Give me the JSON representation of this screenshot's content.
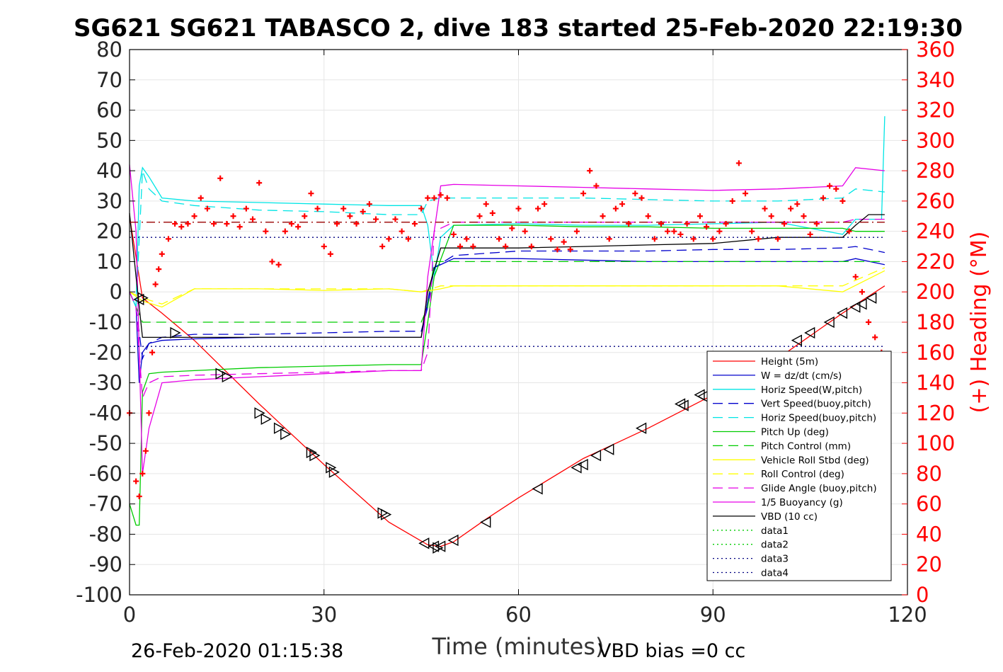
{
  "chart_data": {
    "type": "line",
    "title": "SG621 SG621 TABASCO 2, dive 183 started 25-Feb-2020 22:19:30",
    "xlabel": "Time (minutes)",
    "ylabel_right": "(+) Heading (°M)",
    "footer_left": "26-Feb-2020 01:15:38",
    "footer_right": "VBD bias =0 cc",
    "xlim": [
      0,
      120
    ],
    "ylim": [
      -100,
      80
    ],
    "ylim_right": [
      0,
      360
    ],
    "x_ticks": [
      "0",
      "30",
      "60",
      "90",
      "120"
    ],
    "y_ticks": [
      "80",
      "70",
      "60",
      "50",
      "40",
      "30",
      "20",
      "10",
      "0",
      "-10",
      "-20",
      "-30",
      "-40",
      "-50",
      "-60",
      "-70",
      "-80",
      "-90",
      "-100"
    ],
    "y_right_ticks": [
      "360",
      "340",
      "320",
      "300",
      "280",
      "260",
      "240",
      "220",
      "200",
      "180",
      "160",
      "140",
      "120",
      "100",
      "80",
      "60",
      "40",
      "20",
      "0"
    ],
    "grid": true,
    "legend_position": "bottom-right",
    "series": [
      {
        "name": "Height (5m)",
        "color": "#ff0000",
        "style": "solid",
        "x": [
          0,
          2,
          5,
          10,
          20,
          30,
          40,
          46,
          48,
          50,
          55,
          60,
          70,
          80,
          90,
          100,
          110,
          116.5
        ],
        "y": [
          25,
          -2,
          -7,
          -16,
          -37,
          -57,
          -76,
          -83.5,
          -84,
          -82.5,
          -75,
          -68,
          -55,
          -45,
          -34,
          -22,
          -7,
          2
        ]
      },
      {
        "name": "W = dz/dt (cm/s)",
        "color": "#0000cc",
        "style": "solid",
        "x": [
          0,
          1,
          1.5,
          2,
          3,
          5,
          10,
          20,
          30,
          40,
          45,
          46,
          47,
          50,
          60,
          70,
          80,
          90,
          100,
          110,
          112,
          116.5
        ],
        "y": [
          0,
          -5,
          -30,
          -20,
          -17,
          -16,
          -15.5,
          -15,
          -15,
          -15,
          -15,
          -3,
          8,
          11,
          11,
          10.5,
          10,
          10,
          10,
          10,
          11,
          9
        ]
      },
      {
        "name": "Horiz Speed(W,pitch)",
        "color": "#00e5e5",
        "style": "solid",
        "x": [
          0,
          1,
          1.5,
          2,
          3,
          5,
          10,
          20,
          30,
          40,
          45,
          46,
          47,
          48,
          50,
          60,
          70,
          80,
          90,
          100,
          110,
          112,
          116,
          116.5
        ],
        "y": [
          0,
          -5,
          35,
          41,
          38,
          31,
          30,
          29.5,
          29,
          28.5,
          28.5,
          22,
          5,
          18,
          22,
          22.5,
          22,
          22,
          22.5,
          23,
          19,
          24,
          24,
          58
        ]
      },
      {
        "name": "Vert Speed(buoy,pitch)",
        "color": "#0000cc",
        "style": "dashed",
        "x": [
          0,
          1,
          2,
          3,
          5,
          10,
          20,
          30,
          40,
          45,
          46,
          47,
          50,
          60,
          70,
          80,
          90,
          100,
          110,
          112,
          116.5
        ],
        "y": [
          0,
          -5,
          -22,
          -17,
          -15,
          -14,
          -14,
          -13.5,
          -13,
          -13,
          -5,
          8,
          12,
          13.5,
          13.5,
          13.5,
          14,
          14,
          14.5,
          15,
          13
        ]
      },
      {
        "name": "Horiz Speed(buoy,pitch)",
        "color": "#00e5e5",
        "style": "dashed",
        "x": [
          0,
          1,
          2,
          3,
          5,
          10,
          20,
          30,
          40,
          45,
          46,
          48,
          50,
          60,
          70,
          80,
          90,
          100,
          110,
          112,
          116.5
        ],
        "y": [
          0,
          -5,
          40,
          34,
          30,
          28.5,
          27,
          26.5,
          25.5,
          25.5,
          30,
          31,
          31,
          31,
          31,
          30.5,
          30,
          30,
          31,
          34,
          33
        ]
      },
      {
        "name": "Pitch Up (deg)",
        "color": "#00cc00",
        "style": "solid",
        "x": [
          0,
          1,
          1.5,
          2,
          3,
          5,
          10,
          20,
          30,
          40,
          45,
          46,
          47,
          50,
          60,
          70,
          80,
          90,
          100,
          110,
          112,
          116.5
        ],
        "y": [
          -70,
          -77,
          -77,
          -33,
          -27,
          -26.5,
          -26,
          -25,
          -24.5,
          -24,
          -24,
          -10,
          5,
          22,
          22,
          21.5,
          21.5,
          21,
          21,
          21,
          20,
          20
        ]
      },
      {
        "name": "Pitch Control (mm)",
        "color": "#00cc00",
        "style": "dashed",
        "x": [
          0,
          1,
          2,
          5,
          10,
          20,
          30,
          40,
          45,
          46,
          47,
          50,
          60,
          70,
          80,
          90,
          100,
          110,
          116.5
        ],
        "y": [
          0,
          -5,
          -10,
          -10,
          -10,
          -10,
          -10,
          -10,
          -10,
          -5,
          10,
          10,
          10,
          10,
          10,
          10,
          10,
          10,
          10
        ]
      },
      {
        "name": "Vehicle Roll Stbd (deg)",
        "color": "#ffff00",
        "style": "solid",
        "x": [
          0,
          2,
          5,
          10,
          20,
          30,
          40,
          45,
          48,
          50,
          60,
          70,
          80,
          90,
          100,
          110,
          116.5
        ],
        "y": [
          0,
          -3,
          -5,
          1,
          1,
          0.5,
          1,
          0,
          1,
          2,
          2,
          2,
          2,
          2,
          2,
          0,
          7
        ]
      },
      {
        "name": "Roll Control (deg)",
        "color": "#ffff00",
        "style": "dashed",
        "x": [
          0,
          2,
          5,
          10,
          20,
          30,
          40,
          45,
          48,
          50,
          60,
          70,
          80,
          90,
          100,
          110,
          116.5
        ],
        "y": [
          0,
          -2,
          -4,
          1,
          1,
          1,
          1,
          0,
          2,
          2,
          2,
          2,
          2,
          2,
          2,
          2,
          8
        ]
      },
      {
        "name": "Glide Angle (buoy,pitch)",
        "color": "#e600e6",
        "style": "dashed",
        "x": [
          0,
          1,
          2,
          3,
          5,
          10,
          20,
          30,
          40,
          45,
          46,
          47,
          50,
          60,
          70,
          80,
          90,
          100,
          110,
          112,
          116.5
        ],
        "y": [
          0,
          -5,
          -35,
          -30,
          -28,
          -27.5,
          -27,
          -26.5,
          -26,
          -26,
          -20,
          20,
          23,
          23,
          23,
          23,
          23,
          23,
          23,
          24,
          24
        ]
      },
      {
        "name": "1/5 Buoyancy (g)",
        "color": "#e600e6",
        "style": "solid",
        "x": [
          0,
          1,
          2,
          3,
          5,
          10,
          20,
          30,
          40,
          45,
          46,
          48,
          50,
          60,
          70,
          80,
          90,
          100,
          110,
          112,
          116.5
        ],
        "y": [
          42,
          20,
          -60,
          -45,
          -30,
          -29,
          -28,
          -27,
          -26,
          -26,
          5,
          35,
          35.5,
          35,
          34.5,
          34,
          33.5,
          34,
          35,
          41,
          40
        ]
      },
      {
        "name": "VBD (10 cc)",
        "color": "#000000",
        "style": "solid",
        "x": [
          0,
          1,
          2,
          3,
          5,
          10,
          20,
          30,
          40,
          45,
          46,
          48,
          50,
          60,
          70,
          80,
          90,
          100,
          110,
          112,
          114,
          116.5
        ],
        "y": [
          26,
          5,
          -15,
          -15,
          -15,
          -15,
          -15,
          -15,
          -15,
          -15,
          0,
          14.5,
          14.5,
          14.5,
          15,
          15.5,
          16,
          18,
          18,
          22,
          25.5,
          25.5
        ]
      },
      {
        "name": "data1",
        "color": "#00cc00",
        "style": "dotted",
        "x": [],
        "y": []
      },
      {
        "name": "data2",
        "color": "#00cc00",
        "style": "dotted",
        "x": [],
        "y": []
      },
      {
        "name": "data3",
        "color": "#000080",
        "style": "dotted",
        "x": [
          0,
          116.5
        ],
        "y": [
          18,
          18
        ]
      },
      {
        "name": "data4",
        "color": "#000080",
        "style": "dotted",
        "x": [
          0,
          116.5
        ],
        "y": [
          -18,
          -18
        ]
      },
      {
        "name": "",
        "color": "#990000",
        "style": "dashdot",
        "x": [
          0,
          116.5
        ],
        "y": [
          23,
          23
        ]
      }
    ],
    "heading_series": {
      "color": "#ff0000",
      "marker": "+",
      "axis": "right",
      "x": [
        0,
        1,
        1.5,
        2,
        2.5,
        3,
        3.5,
        4,
        4.5,
        5,
        6,
        7,
        8,
        9,
        10,
        11,
        12,
        13,
        14,
        15,
        16,
        17,
        18,
        19,
        20,
        21,
        22,
        23,
        24,
        25,
        26,
        27,
        28,
        29,
        30,
        31,
        32,
        33,
        34,
        35,
        36,
        37,
        38,
        39,
        40,
        41,
        42,
        43,
        44,
        45,
        46,
        47,
        48,
        49,
        50,
        51,
        52,
        53,
        54,
        55,
        56,
        57,
        58,
        59,
        60,
        61,
        62,
        63,
        64,
        65,
        66,
        67,
        68,
        69,
        70,
        71,
        72,
        73,
        74,
        75,
        76,
        77,
        78,
        79,
        80,
        81,
        82,
        83,
        84,
        85,
        86,
        87,
        88,
        89,
        90,
        91,
        92,
        93,
        94,
        95,
        96,
        97,
        98,
        99,
        100,
        101,
        102,
        103,
        104,
        105,
        106,
        107,
        108,
        109,
        110,
        111,
        112,
        113,
        114,
        115,
        116,
        116.5
      ],
      "y": [
        120,
        75,
        65,
        80,
        95,
        120,
        160,
        205,
        215,
        225,
        235,
        245,
        243,
        245,
        250,
        262,
        255,
        245,
        275,
        245,
        250,
        243,
        255,
        248,
        272,
        240,
        220,
        218,
        240,
        245,
        243,
        250,
        265,
        255,
        230,
        225,
        245,
        255,
        250,
        245,
        253,
        258,
        248,
        230,
        235,
        248,
        240,
        235,
        245,
        255,
        262,
        262,
        264,
        262,
        238,
        230,
        235,
        230,
        250,
        258,
        252,
        235,
        230,
        242,
        255,
        240,
        230,
        255,
        258,
        235,
        228,
        233,
        228,
        240,
        265,
        280,
        270,
        250,
        235,
        255,
        258,
        245,
        265,
        262,
        250,
        235,
        245,
        240,
        240,
        238,
        245,
        235,
        250,
        243,
        235,
        240,
        245,
        260,
        285,
        265,
        240,
        235,
        255,
        250,
        235,
        245,
        255,
        258,
        250,
        238,
        245,
        262,
        270,
        268,
        260,
        240,
        210,
        200,
        180,
        170,
        160,
        150
      ]
    },
    "markers": {
      "color": "#000000",
      "down_triangles": [
        [
          2,
          -2
        ],
        [
          7,
          -13.5
        ],
        [
          14,
          -27
        ],
        [
          15,
          -28
        ],
        [
          20,
          -40
        ],
        [
          21,
          -42
        ],
        [
          23,
          -45
        ],
        [
          24,
          -47
        ],
        [
          28,
          -53
        ],
        [
          28.5,
          -54
        ],
        [
          31,
          -58
        ],
        [
          31.5,
          -59.5
        ],
        [
          39,
          -73
        ],
        [
          39.5,
          -73.5
        ],
        [
          47.5,
          -84.5
        ]
      ],
      "up_triangles": [
        [
          1.5,
          -2.5
        ],
        [
          45.5,
          -83
        ],
        [
          47,
          -84
        ],
        [
          48,
          -84
        ],
        [
          50,
          -82
        ],
        [
          55,
          -76
        ],
        [
          63,
          -65
        ],
        [
          69,
          -58
        ],
        [
          70,
          -57
        ],
        [
          72,
          -54
        ],
        [
          74,
          -52
        ],
        [
          79,
          -45
        ],
        [
          85,
          -37
        ],
        [
          85.5,
          -37.5
        ],
        [
          88,
          -34
        ],
        [
          88.5,
          -34.5
        ],
        [
          103,
          -16
        ],
        [
          105,
          -13.5
        ],
        [
          108,
          -10
        ],
        [
          110,
          -7
        ],
        [
          112,
          -5
        ],
        [
          113,
          -4
        ],
        [
          114.5,
          -2
        ]
      ]
    }
  }
}
